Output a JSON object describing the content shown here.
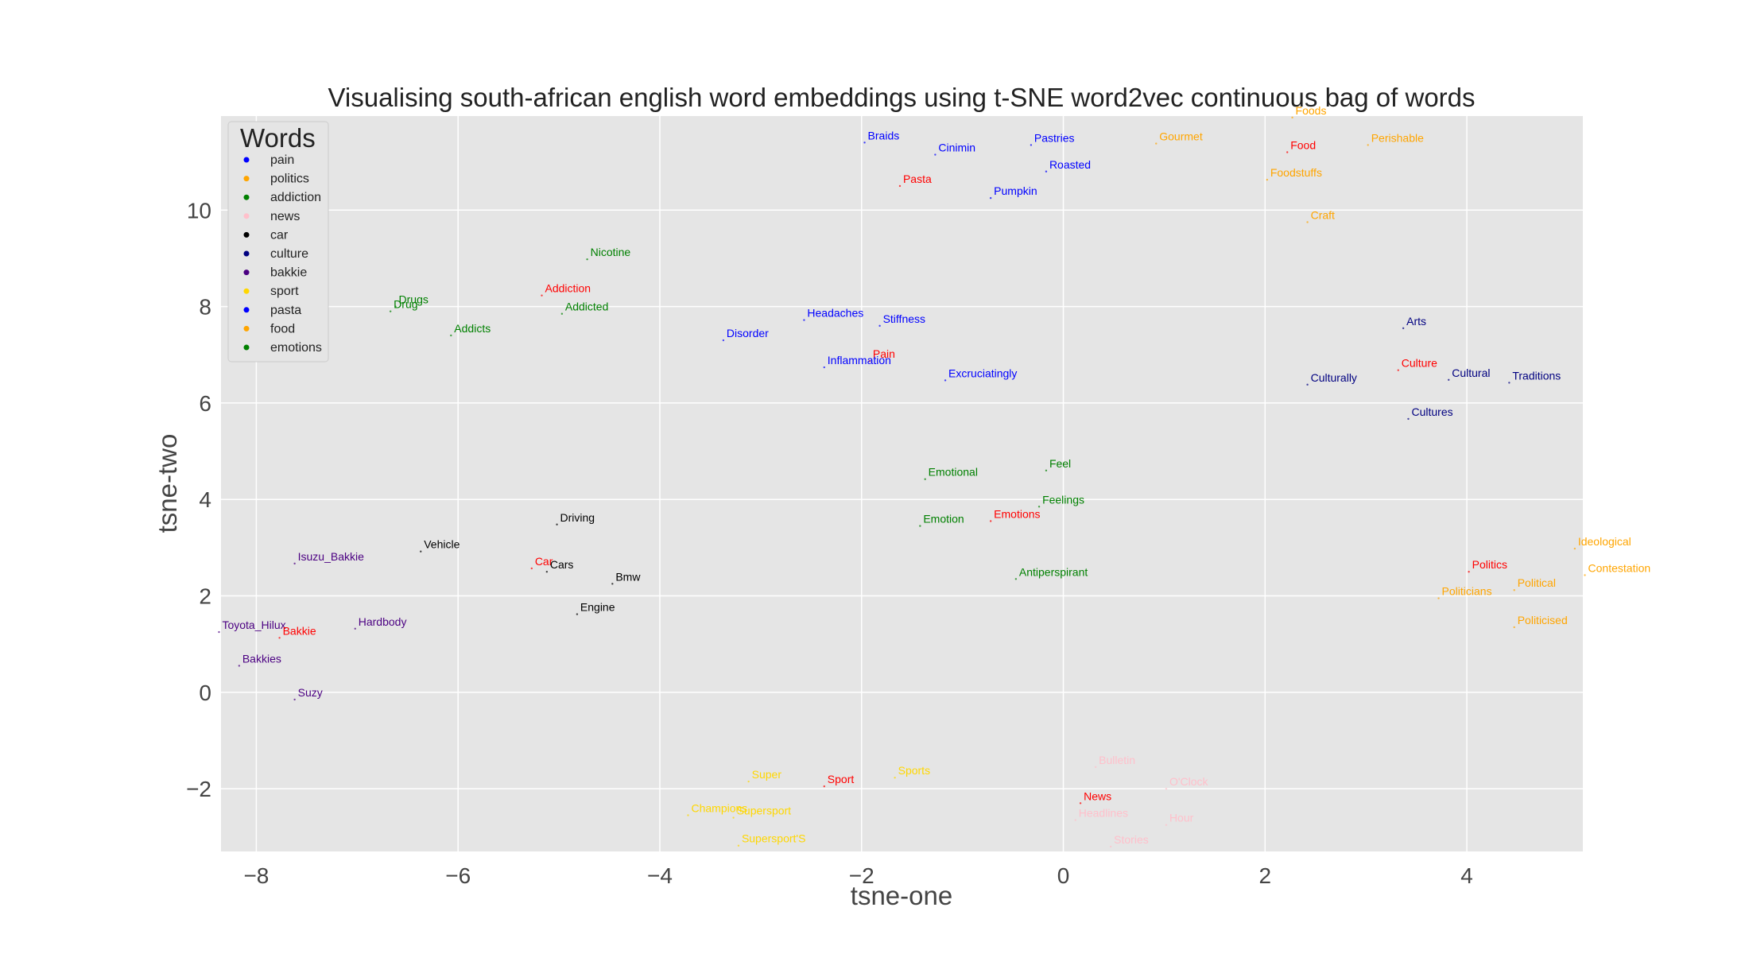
{
  "chart_data": {
    "type": "scatter",
    "title": "Visualising south-african english word embeddings using t-SNE word2vec continuous bag of words",
    "xlabel": "tsne-one",
    "ylabel": "tsne-two",
    "xlim": [
      -8.35,
      5.15
    ],
    "ylim": [
      -3.3,
      11.95
    ],
    "xticks": [
      -8,
      -6,
      -4,
      -2,
      0,
      2,
      4
    ],
    "yticks": [
      -2,
      0,
      2,
      4,
      6,
      8,
      10
    ],
    "xtick_labels": [
      "−8",
      "−6",
      "−4",
      "−2",
      "0",
      "2",
      "4"
    ],
    "ytick_labels": [
      "−2",
      "0",
      "2",
      "4",
      "6",
      "8",
      "10"
    ],
    "grid": true,
    "legend": {
      "title": "Words",
      "placement": "top-left",
      "entries": [
        {
          "name": "pain",
          "color": "#0000ff"
        },
        {
          "name": "politics",
          "color": "#ffa500"
        },
        {
          "name": "addiction",
          "color": "#008000"
        },
        {
          "name": "news",
          "color": "#ffc0cb"
        },
        {
          "name": "car",
          "color": "#000000"
        },
        {
          "name": "culture",
          "color": "#000080"
        },
        {
          "name": "bakkie",
          "color": "#4b0082"
        },
        {
          "name": "sport",
          "color": "#ffd700"
        },
        {
          "name": "pasta",
          "color": "#0000ff"
        },
        {
          "name": "food",
          "color": "#ffa500"
        },
        {
          "name": "emotions",
          "color": "#008000"
        }
      ]
    },
    "points": [
      {
        "label": "Braids",
        "x": -1.97,
        "y": 11.4,
        "color": "#0000ff"
      },
      {
        "label": "Cinimin",
        "x": -1.27,
        "y": 11.15,
        "color": "#0000ff"
      },
      {
        "label": "Pastries",
        "x": -0.32,
        "y": 11.35,
        "color": "#0000ff"
      },
      {
        "label": "Roasted",
        "x": -0.17,
        "y": 10.8,
        "color": "#0000ff"
      },
      {
        "label": "Pumpkin",
        "x": -0.72,
        "y": 10.25,
        "color": "#0000ff"
      },
      {
        "label": "Pasta",
        "x": -1.62,
        "y": 10.5,
        "color": "#ff0000"
      },
      {
        "label": "Gourmet",
        "x": 0.92,
        "y": 11.38,
        "color": "#ffa500"
      },
      {
        "label": "Food",
        "x": 2.22,
        "y": 11.2,
        "color": "#ff0000"
      },
      {
        "label": "Perishable",
        "x": 3.02,
        "y": 11.35,
        "color": "#ffa500"
      },
      {
        "label": "Foodstuffs",
        "x": 2.02,
        "y": 10.63,
        "color": "#ffa500"
      },
      {
        "label": "Craft",
        "x": 2.42,
        "y": 9.75,
        "color": "#ffa500"
      },
      {
        "label": "Foods",
        "x": 2.27,
        "y": 11.92,
        "color": "#ffa500"
      },
      {
        "label": "Nicotine",
        "x": -4.72,
        "y": 8.98,
        "color": "#008000"
      },
      {
        "label": "Addiction",
        "x": -5.17,
        "y": 8.23,
        "color": "#ff0000"
      },
      {
        "label": "Addicted",
        "x": -4.97,
        "y": 7.85,
        "color": "#008000"
      },
      {
        "label": "Drugs",
        "x": -6.62,
        "y": 8.0,
        "color": "#008000"
      },
      {
        "label": "Drug",
        "x": -6.67,
        "y": 7.9,
        "color": "#008000"
      },
      {
        "label": "Addicts",
        "x": -6.07,
        "y": 7.4,
        "color": "#008000"
      },
      {
        "label": "Headaches",
        "x": -2.57,
        "y": 7.72,
        "color": "#0000ff"
      },
      {
        "label": "Stiffness",
        "x": -1.82,
        "y": 7.6,
        "color": "#0000ff"
      },
      {
        "label": "Disorder",
        "x": -3.37,
        "y": 7.3,
        "color": "#0000ff"
      },
      {
        "label": "Pain",
        "x": -1.92,
        "y": 6.87,
        "color": "#ff0000"
      },
      {
        "label": "Inflammation",
        "x": -2.37,
        "y": 6.74,
        "color": "#0000ff"
      },
      {
        "label": "Excruciatingly",
        "x": -1.17,
        "y": 6.47,
        "color": "#0000ff"
      },
      {
        "label": "Arts",
        "x": 3.37,
        "y": 7.55,
        "color": "#000080"
      },
      {
        "label": "Culture",
        "x": 3.32,
        "y": 6.68,
        "color": "#ff0000"
      },
      {
        "label": "Cultural",
        "x": 3.82,
        "y": 6.48,
        "color": "#000080"
      },
      {
        "label": "Traditions",
        "x": 4.42,
        "y": 6.42,
        "color": "#000080"
      },
      {
        "label": "Culturally",
        "x": 2.42,
        "y": 6.38,
        "color": "#000080"
      },
      {
        "label": "Cultures",
        "x": 3.42,
        "y": 5.67,
        "color": "#000080"
      },
      {
        "label": "Feel",
        "x": -0.17,
        "y": 4.6,
        "color": "#008000"
      },
      {
        "label": "Emotional",
        "x": -1.37,
        "y": 4.42,
        "color": "#008000"
      },
      {
        "label": "Feelings",
        "x": -0.24,
        "y": 3.85,
        "color": "#008000"
      },
      {
        "label": "Emotions",
        "x": -0.72,
        "y": 3.55,
        "color": "#ff0000"
      },
      {
        "label": "Emotion",
        "x": -1.42,
        "y": 3.45,
        "color": "#008000"
      },
      {
        "label": "Antiperspirant",
        "x": -0.47,
        "y": 2.35,
        "color": "#008000"
      },
      {
        "label": "Driving",
        "x": -5.02,
        "y": 3.48,
        "color": "#000000"
      },
      {
        "label": "Vehicle",
        "x": -6.37,
        "y": 2.92,
        "color": "#000000"
      },
      {
        "label": "Car",
        "x": -5.27,
        "y": 2.57,
        "color": "#ff0000"
      },
      {
        "label": "Cars",
        "x": -5.12,
        "y": 2.5,
        "color": "#000000"
      },
      {
        "label": "Bmw",
        "x": -4.47,
        "y": 2.25,
        "color": "#000000"
      },
      {
        "label": "Engine",
        "x": -4.82,
        "y": 1.62,
        "color": "#000000"
      },
      {
        "label": "Isuzu_Bakkie",
        "x": -7.62,
        "y": 2.67,
        "color": "#4b0082"
      },
      {
        "label": "Hardbody",
        "x": -7.02,
        "y": 1.32,
        "color": "#4b0082"
      },
      {
        "label": "Toyota_Hilux",
        "x": -8.37,
        "y": 1.25,
        "color": "#4b0082"
      },
      {
        "label": "Bakkie",
        "x": -7.77,
        "y": 1.13,
        "color": "#ff0000"
      },
      {
        "label": "Bakkies",
        "x": -8.17,
        "y": 0.55,
        "color": "#4b0082"
      },
      {
        "label": "Suzy",
        "x": -7.62,
        "y": -0.15,
        "color": "#4b0082"
      },
      {
        "label": "Ideological",
        "x": 5.07,
        "y": 2.98,
        "color": "#ffa500"
      },
      {
        "label": "Contestation",
        "x": 5.17,
        "y": 2.43,
        "color": "#ffa500"
      },
      {
        "label": "Politics",
        "x": 4.02,
        "y": 2.5,
        "color": "#ff0000"
      },
      {
        "label": "Political",
        "x": 4.47,
        "y": 2.12,
        "color": "#ffa500"
      },
      {
        "label": "Politicians",
        "x": 3.72,
        "y": 1.95,
        "color": "#ffa500"
      },
      {
        "label": "Politicised",
        "x": 4.47,
        "y": 1.35,
        "color": "#ffa500"
      },
      {
        "label": "Super",
        "x": -3.12,
        "y": -1.85,
        "color": "#ffd700"
      },
      {
        "label": "Sport",
        "x": -2.37,
        "y": -1.95,
        "color": "#ff0000"
      },
      {
        "label": "Sports",
        "x": -1.67,
        "y": -1.77,
        "color": "#ffd700"
      },
      {
        "label": "Champions",
        "x": -3.72,
        "y": -2.55,
        "color": "#ffd700"
      },
      {
        "label": "Supersport",
        "x": -3.27,
        "y": -2.6,
        "color": "#ffd700"
      },
      {
        "label": "Supersport'S",
        "x": -3.22,
        "y": -3.18,
        "color": "#ffd700"
      },
      {
        "label": "Bulletin",
        "x": 0.32,
        "y": -1.55,
        "color": "#ffc0cb"
      },
      {
        "label": "O'Clock",
        "x": 1.02,
        "y": -2.0,
        "color": "#ffc0cb"
      },
      {
        "label": "News",
        "x": 0.17,
        "y": -2.3,
        "color": "#ff0000"
      },
      {
        "label": "Headlines",
        "x": 0.12,
        "y": -2.65,
        "color": "#ffc0cb"
      },
      {
        "label": "Hour",
        "x": 1.02,
        "y": -2.75,
        "color": "#ffc0cb"
      },
      {
        "label": "Stories",
        "x": 0.47,
        "y": -3.2,
        "color": "#ffc0cb"
      }
    ]
  }
}
